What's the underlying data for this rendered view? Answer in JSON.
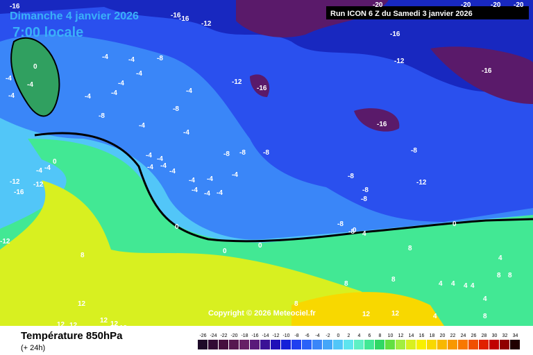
{
  "header": {
    "title": "Dimanche 4 janvier 2026",
    "time": "7:00 locale",
    "run": "Run ICON 6 Z du Samedi 3 janvier 2026"
  },
  "map": {
    "contour_labels": [
      "-16",
      "-16",
      "-16",
      "-12",
      "-16",
      "-12",
      "-16",
      "-12",
      "-16",
      "-16",
      "-8",
      "-12",
      "-20",
      "-20",
      "-20",
      "-20",
      "-4",
      "-4",
      "-8",
      "-4",
      "-4",
      "-4",
      "-4",
      "-4",
      "-8",
      "-8",
      "-4",
      "-4",
      "-8",
      "-8",
      "-8",
      "-4",
      "-4",
      "-4",
      "-4",
      "-4",
      "-4",
      "-4",
      "-4",
      "-4",
      "-4",
      "-4",
      "-8",
      "-8",
      "-8",
      "-8",
      "-8",
      "0",
      "0",
      "0",
      "0",
      "4",
      "0",
      "-12",
      "-16",
      "-12",
      "-12",
      "-4",
      "-4",
      "0",
      "-4",
      "-4",
      "-4",
      "0",
      "8",
      "8",
      "8",
      "8",
      "12",
      "12",
      "12",
      "12",
      "12",
      "12",
      "4",
      "4",
      "4",
      "4",
      "4",
      "8",
      "8",
      "4",
      "4",
      "8",
      "8",
      "12",
      "12"
    ],
    "copyright": "Copyright © 2026 Meteociel.fr"
  },
  "footer": {
    "title": "Température 850hPa",
    "subtitle": "(+ 24h)",
    "scale": [
      {
        "label": "-26",
        "color": "#1e0a28"
      },
      {
        "label": "-24",
        "color": "#320a34"
      },
      {
        "label": "-22",
        "color": "#46103e"
      },
      {
        "label": "-20",
        "color": "#561850"
      },
      {
        "label": "-18",
        "color": "#662066"
      },
      {
        "label": "-16",
        "color": "#5a1a7a"
      },
      {
        "label": "-14",
        "color": "#3a1296"
      },
      {
        "label": "-12",
        "color": "#2010b8"
      },
      {
        "label": "-10",
        "color": "#1420d8"
      },
      {
        "label": "-8",
        "color": "#2040f0"
      },
      {
        "label": "-6",
        "color": "#2a62f8"
      },
      {
        "label": "-4",
        "color": "#3a86f8"
      },
      {
        "label": "-2",
        "color": "#44a6f8"
      },
      {
        "label": "0",
        "color": "#52c6f8"
      },
      {
        "label": "2",
        "color": "#5ee4ee"
      },
      {
        "label": "4",
        "color": "#5ef0c4"
      },
      {
        "label": "6",
        "color": "#42e894"
      },
      {
        "label": "8",
        "color": "#30d864"
      },
      {
        "label": "10",
        "color": "#62e040"
      },
      {
        "label": "12",
        "color": "#a2ee40"
      },
      {
        "label": "14",
        "color": "#d8f020"
      },
      {
        "label": "16",
        "color": "#f8f000"
      },
      {
        "label": "18",
        "color": "#f8d800"
      },
      {
        "label": "20",
        "color": "#f8b800"
      },
      {
        "label": "22",
        "color": "#f89800"
      },
      {
        "label": "24",
        "color": "#f87800"
      },
      {
        "label": "26",
        "color": "#f05000"
      },
      {
        "label": "28",
        "color": "#e02000"
      },
      {
        "label": "30",
        "color": "#c00000"
      },
      {
        "label": "32",
        "color": "#900000"
      },
      {
        "label": "34",
        "color": "#200000"
      }
    ]
  }
}
